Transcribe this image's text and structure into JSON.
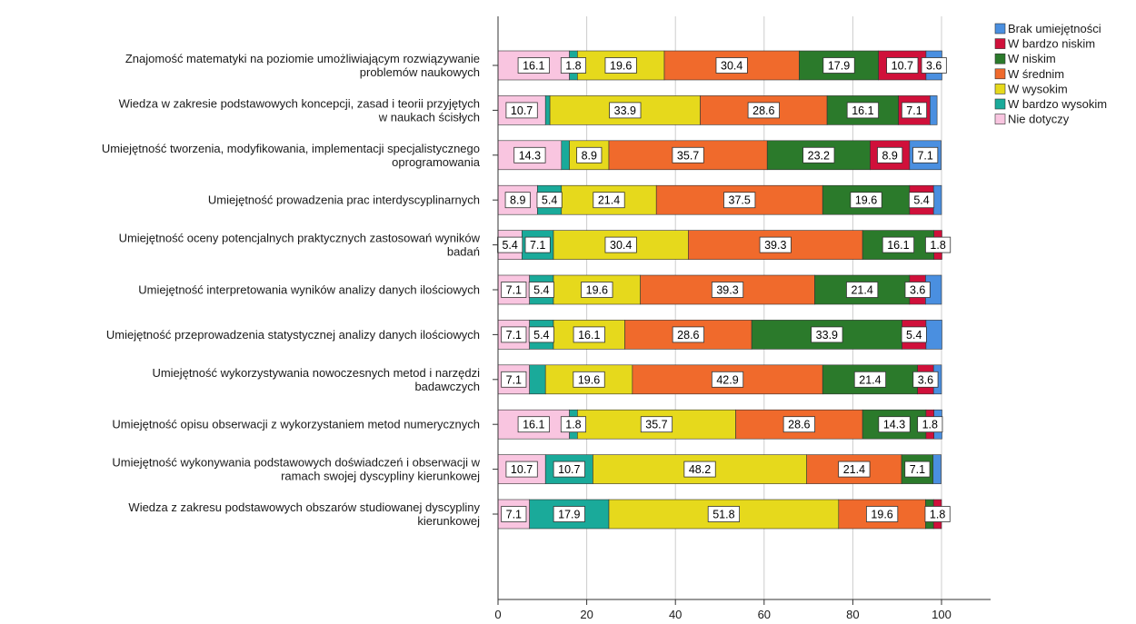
{
  "chart_data": {
    "type": "bar",
    "orientation": "horizontal",
    "stacked": true,
    "xlim": [
      0,
      100
    ],
    "xticks": [
      0,
      20,
      40,
      60,
      80,
      100
    ],
    "grid": true,
    "legend_position": "top-right",
    "categories": [
      [
        "Znajomość matematyki na poziomie umożliwiającym rozwiązywanie",
        "problemów naukowych"
      ],
      [
        "Wiedza w zakresie podstawowych koncepcji, zasad i teorii przyjętych",
        "w naukach ścisłych"
      ],
      [
        "Umiejętność tworzenia, modyfikowania, implementacji specjalistycznego",
        "oprogramowania"
      ],
      [
        "Umiejętność prowadzenia prac interdyscyplinarnych"
      ],
      [
        "Umiejętność oceny potencjalnych praktycznych zastosowań wyników",
        "badań"
      ],
      [
        "Umiejętność interpretowania wyników analizy danych ilościowych"
      ],
      [
        "Umiejętność przeprowadzenia statystycznej analizy danych ilościowych"
      ],
      [
        "Umiejętność wykorzystywania nowoczesnych metod i narzędzi",
        "badawczych"
      ],
      [
        "Umiejętność opisu obserwacji z wykorzystaniem metod numerycznych"
      ],
      [
        "Umiejętność wykonywania podstawowych doświadczeń i obserwacji w",
        "ramach swojej dyscypliny kierunkowej"
      ],
      [
        "Wiedza z zakresu podstawowych obszarów studiowanej dyscypliny",
        "kierunkowej"
      ]
    ],
    "series": [
      {
        "name": "Nie dotyczy",
        "color": "#f9c5e0",
        "values": [
          16.1,
          10.7,
          14.3,
          8.9,
          5.4,
          7.1,
          7.1,
          7.1,
          16.1,
          10.7,
          7.1
        ],
        "labels": [
          "16.1",
          "10.7",
          "14.3",
          "8.9",
          "5.4",
          "7.1",
          "7.1",
          "7.1",
          "16.1",
          "10.7",
          "7.1"
        ]
      },
      {
        "name": "W bardzo wysokim",
        "color": "#1aaa9a",
        "values": [
          1.8,
          1.0,
          1.8,
          5.4,
          7.1,
          5.4,
          5.4,
          3.6,
          1.8,
          10.7,
          17.9
        ],
        "labels": [
          "1.8",
          "",
          "",
          "5.4",
          "7.1",
          "5.4",
          "5.4",
          "",
          "1.8",
          "10.7",
          "17.9"
        ]
      },
      {
        "name": "W wysokim",
        "color": "#e6d91c",
        "values": [
          19.6,
          33.9,
          8.9,
          21.4,
          30.4,
          19.6,
          16.1,
          19.6,
          35.7,
          48.2,
          51.8
        ],
        "labels": [
          "19.6",
          "33.9",
          "8.9",
          "21.4",
          "30.4",
          "19.6",
          "16.1",
          "19.6",
          "35.7",
          "48.2",
          "51.8"
        ]
      },
      {
        "name": "W średnim",
        "color": "#f06a2c",
        "values": [
          30.4,
          28.6,
          35.7,
          37.5,
          39.3,
          39.3,
          28.6,
          42.9,
          28.6,
          21.4,
          19.6
        ],
        "labels": [
          "30.4",
          "28.6",
          "35.7",
          "37.5",
          "39.3",
          "39.3",
          "28.6",
          "42.9",
          "28.6",
          "21.4",
          "19.6"
        ]
      },
      {
        "name": "W niskim",
        "color": "#2b7a2b",
        "values": [
          17.9,
          16.1,
          23.2,
          19.6,
          16.1,
          21.4,
          33.9,
          21.4,
          14.3,
          7.1,
          1.8
        ],
        "labels": [
          "17.9",
          "16.1",
          "23.2",
          "19.6",
          "16.1",
          "21.4",
          "33.9",
          "21.4",
          "14.3",
          "7.1",
          ""
        ]
      },
      {
        "name": "W bardzo niskim",
        "color": "#d0103a",
        "values": [
          10.7,
          7.1,
          8.9,
          5.4,
          1.8,
          3.6,
          5.4,
          3.6,
          1.8,
          0,
          1.8
        ],
        "labels": [
          "10.7",
          "7.1",
          "8.9",
          "5.4",
          "1.8",
          "3.6",
          "5.4",
          "3.6",
          "1.8",
          "",
          "1.8"
        ]
      },
      {
        "name": "Brak umiejętności",
        "color": "#4a8fe0",
        "values": [
          3.6,
          1.6,
          7.1,
          1.8,
          0,
          3.6,
          3.6,
          1.8,
          1.8,
          1.8,
          0
        ],
        "labels": [
          "3.6",
          "",
          "7.1",
          "",
          "",
          "",
          "",
          "",
          "",
          "",
          ""
        ]
      }
    ],
    "legend_order": [
      "Brak umiejętności",
      "W bardzo niskim",
      "W niskim",
      "W średnim",
      "W wysokim",
      "W bardzo wysokim",
      "Nie dotyczy"
    ]
  }
}
